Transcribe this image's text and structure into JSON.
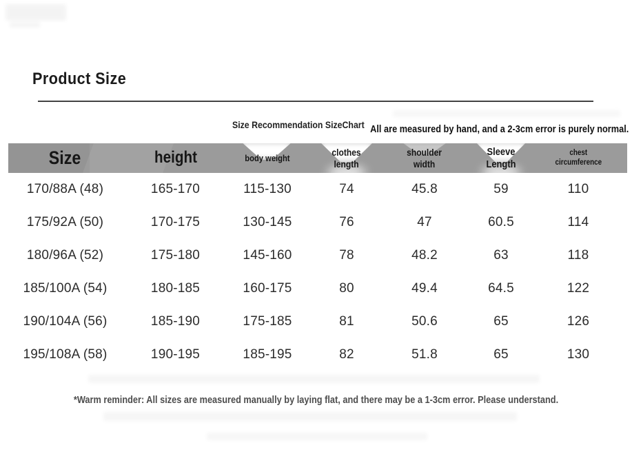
{
  "page": {
    "title": "Product Size",
    "subtitle_left": "Size Recommendation SizeChart",
    "subtitle_right": "All are measured by hand, and a 2-3cm error is purely normal.",
    "footer_note": "*Warm reminder: All sizes are measured manually by laying flat, and there may be a 1-3cm error. Please understand."
  },
  "colors": {
    "background": "#ffffff",
    "header_bar": "#9b9b9b",
    "title_text": "#1b1b1b",
    "header_text": "#161616",
    "data_text": "#2b2b2b",
    "footer_text": "#4e4e4e",
    "rule_line": "#424242"
  },
  "size_table": {
    "columns": [
      {
        "id": "size",
        "label": "Size"
      },
      {
        "id": "height",
        "label": "height"
      },
      {
        "id": "body_weight",
        "label": "body weight"
      },
      {
        "id": "clothes_length",
        "label": "clothes\nlength"
      },
      {
        "id": "shoulder_width",
        "label": "shoulder\nwidth"
      },
      {
        "id": "sleeve_length",
        "label": "Sleeve\nLength"
      },
      {
        "id": "chest_circumference",
        "label": "chest\ncircumference"
      }
    ],
    "rows": [
      [
        "170/88A (48)",
        "165-170",
        "115-130",
        "74",
        "45.8",
        "59",
        "110"
      ],
      [
        "175/92A (50)",
        "170-175",
        "130-145",
        "76",
        "47",
        "60.5",
        "114"
      ],
      [
        "180/96A (52)",
        "175-180",
        "145-160",
        "78",
        "48.2",
        "63",
        "118"
      ],
      [
        "185/100A (54)",
        "180-185",
        "160-175",
        "80",
        "49.4",
        "64.5",
        "122"
      ],
      [
        "190/104A (56)",
        "185-190",
        "175-185",
        "81",
        "50.6",
        "65",
        "126"
      ],
      [
        "195/108A (58)",
        "190-195",
        "185-195",
        "82",
        "51.8",
        "65",
        "130"
      ]
    ]
  }
}
